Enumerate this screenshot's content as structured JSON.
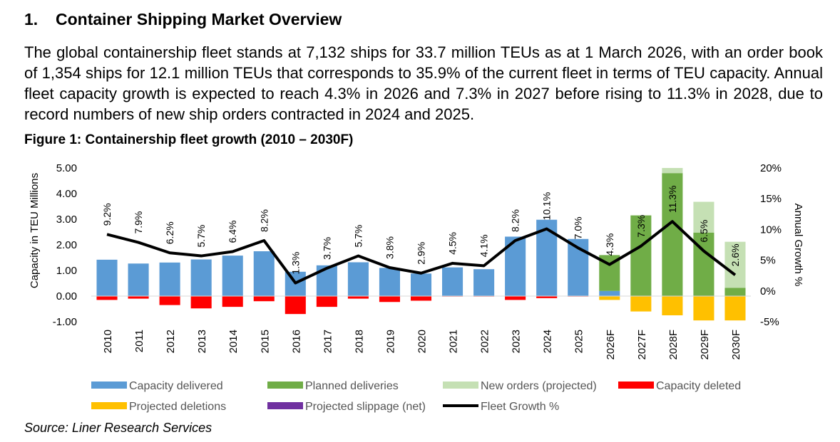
{
  "section": {
    "number": "1.",
    "title": "Container Shipping Market Overview"
  },
  "paragraph": "The global containership fleet stands at 7,132 ships for 33.7 million TEUs as at 1 March 2026, with an order book of 1,354 ships for 12.1 million TEUs that corresponds to 35.9% of the current fleet in terms of TEU capacity. Annual fleet capacity growth is expected to reach 4.3% in 2026 and 7.3% in 2027 before rising to 11.3% in 2028, due to record numbers of new ship orders contracted in 2024 and 2025.",
  "figure_title": "Figure 1: Containership fleet growth (2010 – 2030F)",
  "source": "Source: Liner Research Services",
  "colors": {
    "capacity_delivered": "#5b9bd5",
    "planned_deliveries": "#70ad47",
    "new_orders": "#c5e0b4",
    "capacity_deleted": "#ff0000",
    "projected_deletions": "#ffc000",
    "projected_slippage": "#7030a0",
    "fleet_growth": "#000000"
  },
  "chart_data": {
    "type": "bar",
    "title": "Figure 1: Containership fleet growth (2010 – 2030F)",
    "ylabel": "Capacity in TEU Millions",
    "y2label": "Annual Growth %",
    "ylim": [
      -1,
      5
    ],
    "y2lim": [
      -5,
      20
    ],
    "yticks": [
      "5.00",
      "4.00",
      "3.00",
      "2.00",
      "1.00",
      "0.00",
      "-1.00"
    ],
    "y2ticks": [
      "20%",
      "15%",
      "10%",
      "5%",
      "0%",
      "-5%"
    ],
    "categories": [
      "2010",
      "2011",
      "2012",
      "2013",
      "2014",
      "2015",
      "2016",
      "2017",
      "2018",
      "2019",
      "2020",
      "2021",
      "2022",
      "2023",
      "2024",
      "2025",
      "2026F",
      "2027F",
      "2028F",
      "2029F",
      "2030F"
    ],
    "series": [
      {
        "name": "Capacity delivered",
        "key": "capacity_delivered",
        "stack": "pos",
        "values": [
          1.42,
          1.27,
          1.31,
          1.43,
          1.58,
          1.75,
          0.95,
          1.2,
          1.32,
          1.1,
          0.88,
          1.12,
          1.05,
          2.32,
          2.98,
          2.23,
          0.2,
          0,
          0,
          0,
          0
        ]
      },
      {
        "name": "Planned deliveries",
        "key": "planned_deliveries",
        "stack": "pos",
        "values": [
          0,
          0,
          0,
          0,
          0,
          0,
          0,
          0,
          0,
          0,
          0,
          0,
          0,
          0,
          0,
          0,
          1.4,
          3.15,
          4.8,
          2.48,
          0.32
        ]
      },
      {
        "name": "New orders (projected)",
        "key": "new_orders",
        "stack": "pos",
        "values": [
          0,
          0,
          0,
          0,
          0,
          0,
          0,
          0,
          0,
          0,
          0,
          0,
          0,
          0,
          0,
          0,
          0,
          0,
          0.2,
          1.2,
          1.8
        ]
      },
      {
        "name": "Capacity deleted",
        "key": "capacity_deleted",
        "stack": "neg",
        "values": [
          -0.15,
          -0.1,
          -0.35,
          -0.48,
          -0.42,
          -0.2,
          -0.7,
          -0.42,
          -0.1,
          -0.23,
          -0.18,
          -0.02,
          -0.02,
          -0.15,
          -0.08,
          -0.02,
          0,
          0,
          0,
          0,
          0
        ]
      },
      {
        "name": "Projected deletions",
        "key": "projected_deletions",
        "stack": "neg",
        "values": [
          0,
          0,
          0,
          0,
          0,
          0,
          0,
          0,
          0,
          0,
          0,
          0,
          0,
          0,
          0,
          0,
          -0.15,
          -0.6,
          -0.75,
          -0.95,
          -0.95
        ]
      },
      {
        "name": "Projected slippage (net)",
        "key": "projected_slippage",
        "stack": "neg",
        "values": [
          0,
          0,
          0,
          0,
          0,
          0,
          0,
          0,
          0,
          0,
          0,
          0,
          0,
          0,
          0,
          0,
          0,
          0,
          0,
          0,
          0
        ]
      }
    ],
    "line": {
      "name": "Fleet Growth %",
      "key": "fleet_growth",
      "values": [
        9.2,
        7.9,
        6.2,
        5.7,
        6.4,
        8.2,
        1.3,
        3.7,
        5.7,
        3.8,
        2.9,
        4.5,
        4.1,
        8.2,
        10.1,
        7.0,
        4.3,
        7.3,
        11.3,
        6.5,
        2.6
      ],
      "labels": [
        "9.2%",
        "7.9%",
        "6.2%",
        "5.7%",
        "6.4%",
        "8.2%",
        "1.3%",
        "3.7%",
        "5.7%",
        "3.8%",
        "2.9%",
        "4.5%",
        "4.1%",
        "8.2%",
        "10.1%",
        "7.0%",
        "4.3%",
        "7.3%",
        "11.3%",
        "6.5%",
        "2.6%"
      ]
    },
    "legend": {
      "placement": "bottom",
      "entries": [
        {
          "label": "Capacity delivered",
          "key": "capacity_delivered",
          "kind": "box"
        },
        {
          "label": "Planned deliveries",
          "key": "planned_deliveries",
          "kind": "box"
        },
        {
          "label": "New orders (projected)",
          "key": "new_orders",
          "kind": "box"
        },
        {
          "label": "Capacity deleted",
          "key": "capacity_deleted",
          "kind": "box"
        },
        {
          "label": "Projected deletions",
          "key": "projected_deletions",
          "kind": "box"
        },
        {
          "label": "Projected slippage (net)",
          "key": "projected_slippage",
          "kind": "box"
        },
        {
          "label": "Fleet Growth %",
          "key": "fleet_growth",
          "kind": "line"
        }
      ]
    },
    "grid": false
  }
}
